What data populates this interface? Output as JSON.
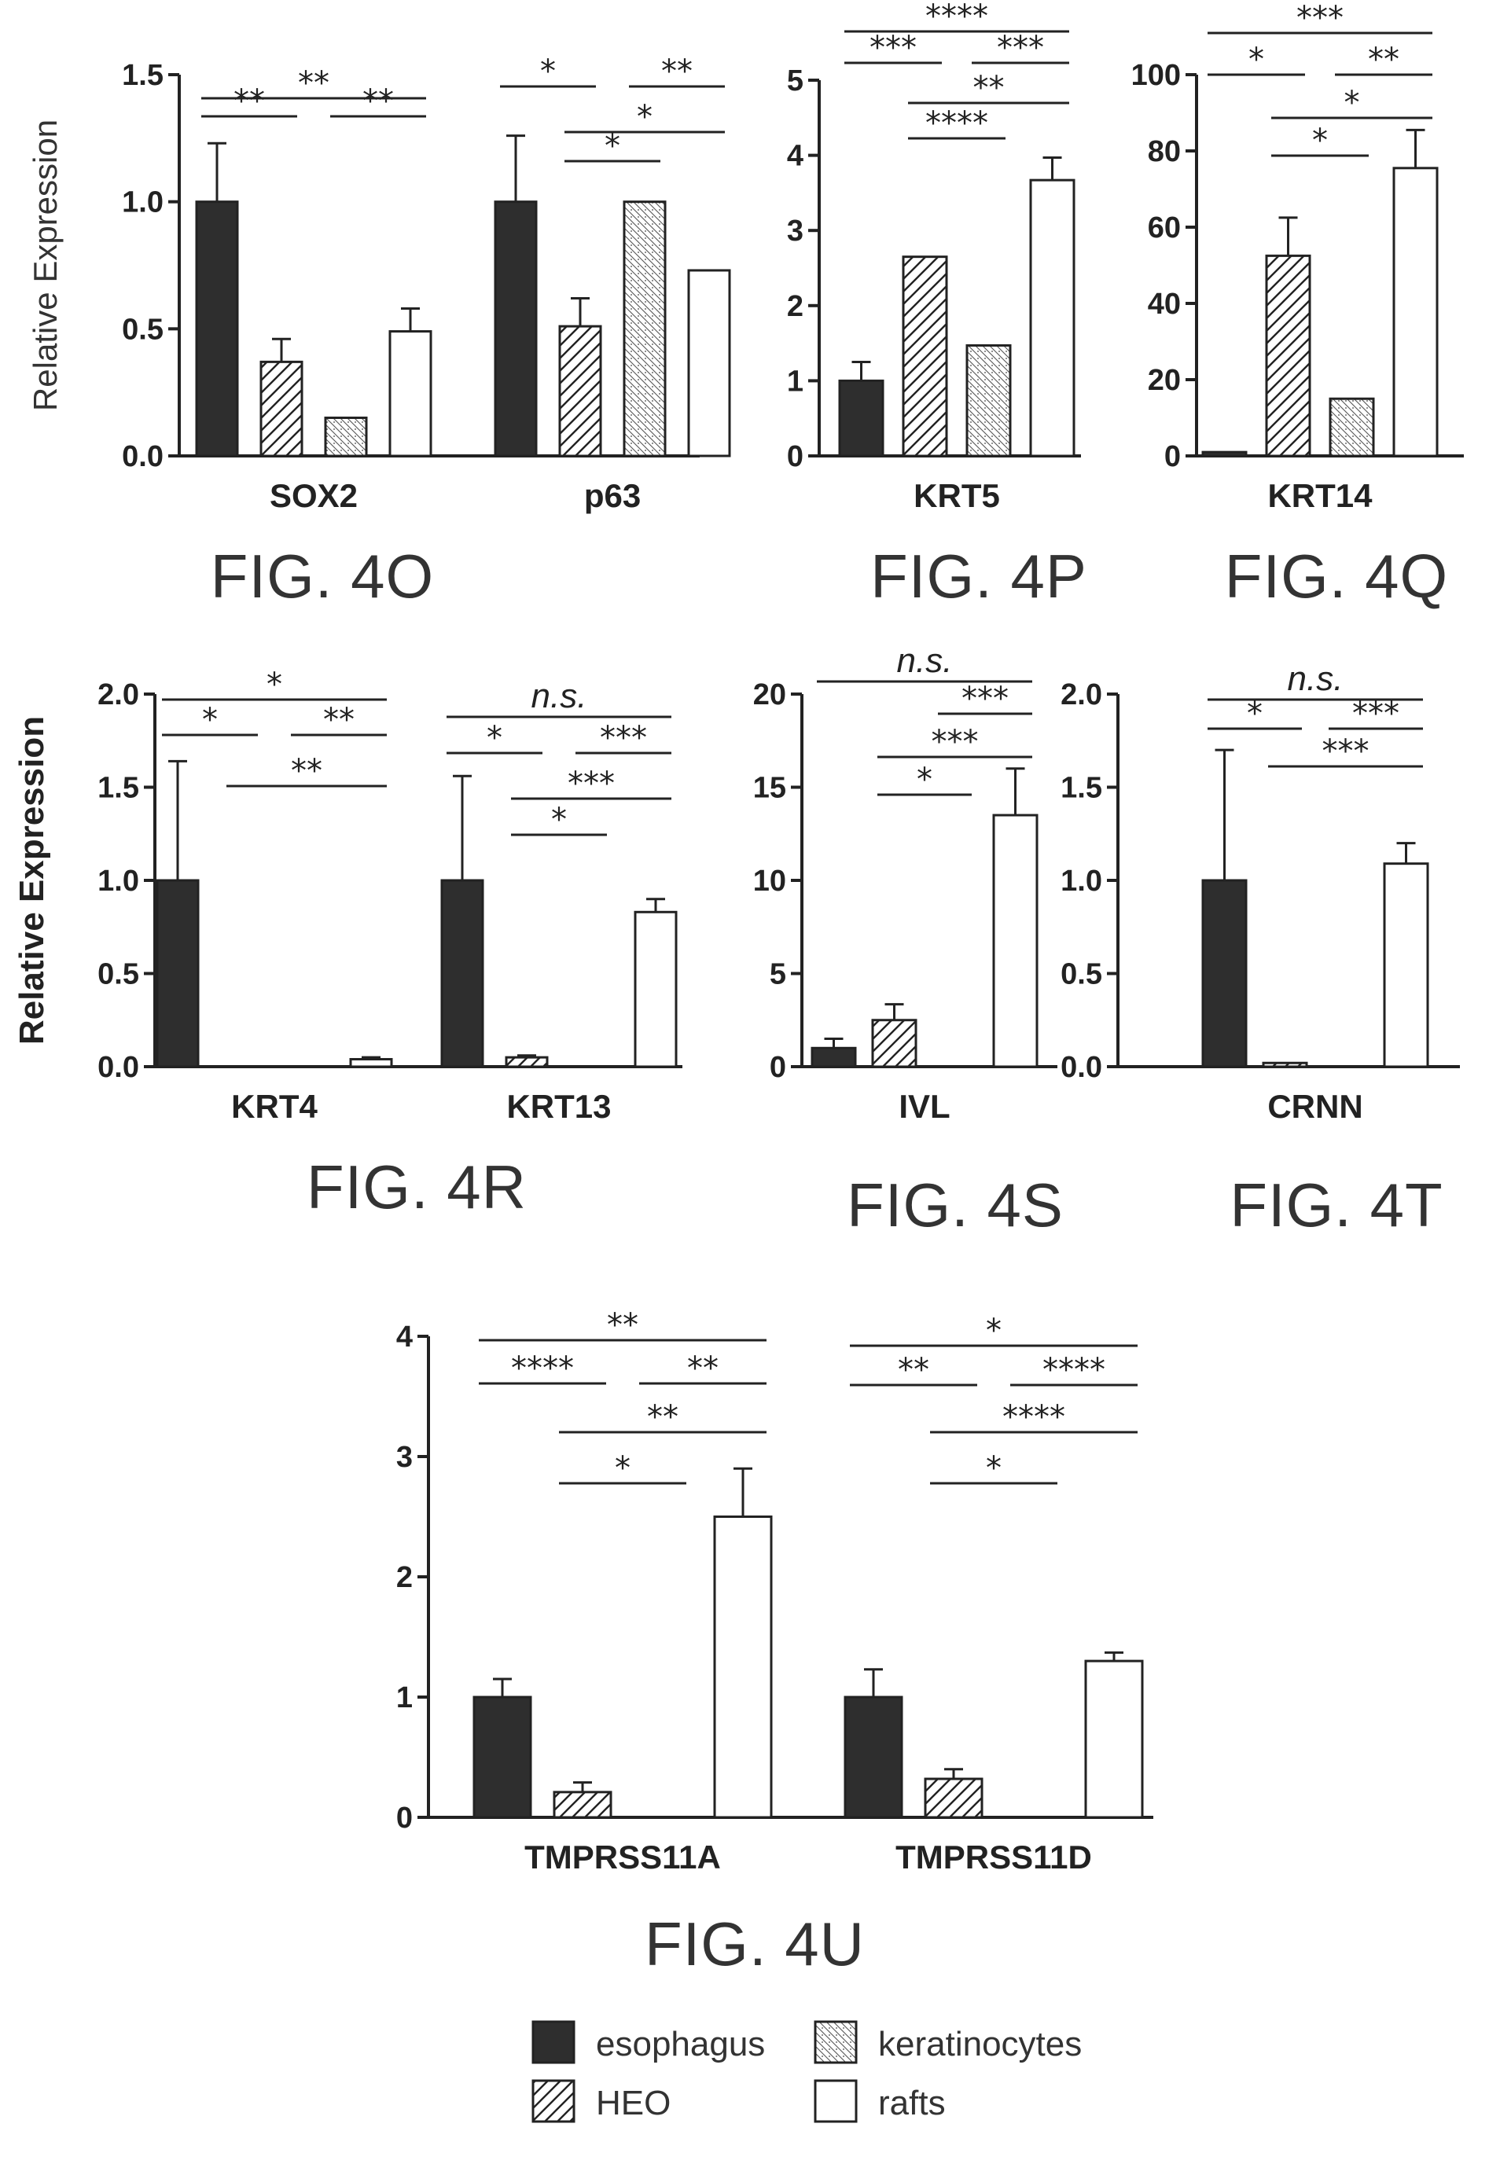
{
  "legend": {
    "items": [
      {
        "label": "esophagus",
        "pattern": "solid"
      },
      {
        "label": "keratinocytes",
        "pattern": "dots"
      },
      {
        "label": "HEO",
        "pattern": "hatch"
      },
      {
        "label": "rafts",
        "pattern": "white"
      }
    ]
  },
  "chart_data": [
    {
      "caption": "FIG. 4O",
      "type": "bar",
      "ylabel": "Relative Expression",
      "ylim": [
        0,
        1.5
      ],
      "yticks": [
        "0.0",
        "0.5",
        "1.0",
        "1.5"
      ],
      "categories": [
        "SOX2",
        "p63"
      ],
      "series": [
        {
          "name": "esophagus",
          "values": [
            1.0,
            1.0
          ],
          "errors": [
            0.23,
            0.26
          ]
        },
        {
          "name": "HEO",
          "values": [
            0.37,
            0.51
          ],
          "errors": [
            0.09,
            0.11
          ]
        },
        {
          "name": "keratinocytes",
          "values": [
            0.15,
            1.0
          ],
          "errors": [
            0,
            0
          ]
        },
        {
          "name": "rafts",
          "values": [
            0.49,
            0.73
          ],
          "errors": [
            0.09,
            0
          ]
        }
      ],
      "significance": [
        {
          "category": 0,
          "from": 0,
          "to": 3,
          "label": "**"
        },
        {
          "category": 0,
          "from": 0,
          "to": 1,
          "label": "**"
        },
        {
          "category": 0,
          "from": 2,
          "to": 3,
          "label": "**"
        },
        {
          "category": 1,
          "from": 0,
          "to": 1,
          "label": "*"
        },
        {
          "category": 1,
          "from": 2,
          "to": 3,
          "label": "**"
        },
        {
          "category": 1,
          "from": 1,
          "to": 3,
          "label": "*"
        },
        {
          "category": 1,
          "from": 1,
          "to": 2,
          "label": "*"
        }
      ]
    },
    {
      "caption": "FIG. 4P",
      "type": "bar",
      "ylabel": "",
      "ylim": [
        0,
        5
      ],
      "yticks": [
        "0",
        "1",
        "2",
        "3",
        "4",
        "5"
      ],
      "categories": [
        "KRT5"
      ],
      "series": [
        {
          "name": "esophagus",
          "values": [
            1.0
          ],
          "errors": [
            0.25
          ]
        },
        {
          "name": "HEO",
          "values": [
            2.65
          ],
          "errors": [
            0
          ]
        },
        {
          "name": "keratinocytes",
          "values": [
            1.47
          ],
          "errors": [
            0
          ]
        },
        {
          "name": "rafts",
          "values": [
            3.67
          ],
          "errors": [
            0.3
          ]
        }
      ],
      "significance": [
        {
          "category": 0,
          "from": 0,
          "to": 3,
          "label": "****"
        },
        {
          "category": 0,
          "from": 0,
          "to": 1,
          "label": "***"
        },
        {
          "category": 0,
          "from": 2,
          "to": 3,
          "label": "***"
        },
        {
          "category": 0,
          "from": 1,
          "to": 3,
          "label": "**"
        },
        {
          "category": 0,
          "from": 1,
          "to": 2,
          "label": "****"
        }
      ]
    },
    {
      "caption": "FIG. 4Q",
      "type": "bar",
      "ylabel": "",
      "ylim": [
        0,
        100
      ],
      "yticks": [
        "0",
        "20",
        "40",
        "60",
        "80",
        "100"
      ],
      "categories": [
        "KRT14"
      ],
      "series": [
        {
          "name": "esophagus",
          "values": [
            1.0
          ],
          "errors": [
            0
          ]
        },
        {
          "name": "HEO",
          "values": [
            52.5
          ],
          "errors": [
            10
          ]
        },
        {
          "name": "keratinocytes",
          "values": [
            15.0
          ],
          "errors": [
            0
          ]
        },
        {
          "name": "rafts",
          "values": [
            75.5
          ],
          "errors": [
            10
          ]
        }
      ],
      "significance": [
        {
          "category": 0,
          "from": 0,
          "to": 3,
          "label": "***"
        },
        {
          "category": 0,
          "from": 0,
          "to": 1,
          "label": "*"
        },
        {
          "category": 0,
          "from": 2,
          "to": 3,
          "label": "**"
        },
        {
          "category": 0,
          "from": 1,
          "to": 3,
          "label": "*"
        },
        {
          "category": 0,
          "from": 1,
          "to": 2,
          "label": "*"
        }
      ]
    },
    {
      "caption": "FIG. 4R",
      "type": "bar",
      "ylabel": "Relative Expression",
      "ylim": [
        0,
        2.0
      ],
      "yticks": [
        "0.0",
        "0.5",
        "1.0",
        "1.5",
        "2.0"
      ],
      "categories": [
        "KRT4",
        "KRT13"
      ],
      "series": [
        {
          "name": "esophagus",
          "values": [
            1.0,
            1.0
          ],
          "errors": [
            0.64,
            0.56
          ]
        },
        {
          "name": "HEO",
          "values": [
            0.0,
            0.05
          ],
          "errors": [
            0,
            0.01
          ]
        },
        {
          "name": "keratinocytes",
          "values": [
            0.0,
            0.0
          ],
          "errors": [
            0,
            0
          ]
        },
        {
          "name": "rafts",
          "values": [
            0.04,
            0.83
          ],
          "errors": [
            0.01,
            0.07
          ]
        }
      ],
      "significance": [
        {
          "category": 0,
          "from": 0,
          "to": 3,
          "label": "*"
        },
        {
          "category": 0,
          "from": 0,
          "to": 1,
          "label": "*"
        },
        {
          "category": 0,
          "from": 2,
          "to": 3,
          "label": "**"
        },
        {
          "category": 0,
          "from": 1,
          "to": 3,
          "label": "**"
        },
        {
          "category": 1,
          "from": 0,
          "to": 3,
          "label": "n.s."
        },
        {
          "category": 1,
          "from": 0,
          "to": 1,
          "label": "*"
        },
        {
          "category": 1,
          "from": 2,
          "to": 3,
          "label": "***"
        },
        {
          "category": 1,
          "from": 1,
          "to": 3,
          "label": "***"
        },
        {
          "category": 1,
          "from": 1,
          "to": 2,
          "label": "*"
        }
      ]
    },
    {
      "caption": "FIG. 4S",
      "type": "bar",
      "ylabel": "",
      "ylim": [
        0,
        20
      ],
      "yticks": [
        "0",
        "5",
        "10",
        "15",
        "20"
      ],
      "categories": [
        "IVL"
      ],
      "series": [
        {
          "name": "esophagus",
          "values": [
            1.0
          ],
          "errors": [
            0.5
          ]
        },
        {
          "name": "HEO",
          "values": [
            2.5
          ],
          "errors": [
            0.85
          ]
        },
        {
          "name": "keratinocytes",
          "values": [
            0.0
          ],
          "errors": [
            0
          ]
        },
        {
          "name": "rafts",
          "values": [
            13.5
          ],
          "errors": [
            2.5
          ]
        }
      ],
      "significance": [
        {
          "category": 0,
          "from": 0,
          "to": 3,
          "label": "n.s."
        },
        {
          "category": 0,
          "from": 2,
          "to": 3,
          "label": "***"
        },
        {
          "category": 0,
          "from": 1,
          "to": 3,
          "label": "***"
        },
        {
          "category": 0,
          "from": 1,
          "to": 2,
          "label": "*"
        }
      ]
    },
    {
      "caption": "FIG. 4T",
      "type": "bar",
      "ylabel": "",
      "ylim": [
        0,
        2.0
      ],
      "yticks": [
        "0.0",
        "0.5",
        "1.0",
        "1.5",
        "2.0"
      ],
      "categories": [
        "CRNN"
      ],
      "series": [
        {
          "name": "esophagus",
          "values": [
            1.0
          ],
          "errors": [
            0.7
          ]
        },
        {
          "name": "HEO",
          "values": [
            0.02
          ],
          "errors": [
            0
          ]
        },
        {
          "name": "keratinocytes",
          "values": [
            0.0
          ],
          "errors": [
            0
          ]
        },
        {
          "name": "rafts",
          "values": [
            1.09
          ],
          "errors": [
            0.11
          ]
        }
      ],
      "significance": [
        {
          "category": 0,
          "from": 0,
          "to": 3,
          "label": "n.s."
        },
        {
          "category": 0,
          "from": 0,
          "to": 1,
          "label": "*"
        },
        {
          "category": 0,
          "from": 2,
          "to": 3,
          "label": "***"
        },
        {
          "category": 0,
          "from": 1,
          "to": 3,
          "label": "***"
        }
      ]
    },
    {
      "caption": "FIG. 4U",
      "type": "bar",
      "ylabel": "",
      "ylim": [
        0,
        4
      ],
      "yticks": [
        "0",
        "1",
        "2",
        "3",
        "4"
      ],
      "categories": [
        "TMPRSS11A",
        "TMPRSS11D"
      ],
      "series": [
        {
          "name": "esophagus",
          "values": [
            1.0,
            1.0
          ],
          "errors": [
            0.15,
            0.23
          ]
        },
        {
          "name": "HEO",
          "values": [
            0.21,
            0.32
          ],
          "errors": [
            0.08,
            0.08
          ]
        },
        {
          "name": "keratinocytes",
          "values": [
            0.0,
            0.0
          ],
          "errors": [
            0,
            0
          ]
        },
        {
          "name": "rafts",
          "values": [
            2.5,
            1.3
          ],
          "errors": [
            0.4,
            0.07
          ]
        }
      ],
      "significance": [
        {
          "category": 0,
          "from": 0,
          "to": 3,
          "label": "**"
        },
        {
          "category": 0,
          "from": 0,
          "to": 1,
          "label": "****"
        },
        {
          "category": 0,
          "from": 2,
          "to": 3,
          "label": "**"
        },
        {
          "category": 0,
          "from": 1,
          "to": 3,
          "label": "**"
        },
        {
          "category": 0,
          "from": 1,
          "to": 2,
          "label": "*"
        },
        {
          "category": 1,
          "from": 0,
          "to": 3,
          "label": "*"
        },
        {
          "category": 1,
          "from": 0,
          "to": 1,
          "label": "**"
        },
        {
          "category": 1,
          "from": 2,
          "to": 3,
          "label": "****"
        },
        {
          "category": 1,
          "from": 1,
          "to": 3,
          "label": "****"
        },
        {
          "category": 1,
          "from": 1,
          "to": 2,
          "label": "*"
        }
      ]
    }
  ]
}
